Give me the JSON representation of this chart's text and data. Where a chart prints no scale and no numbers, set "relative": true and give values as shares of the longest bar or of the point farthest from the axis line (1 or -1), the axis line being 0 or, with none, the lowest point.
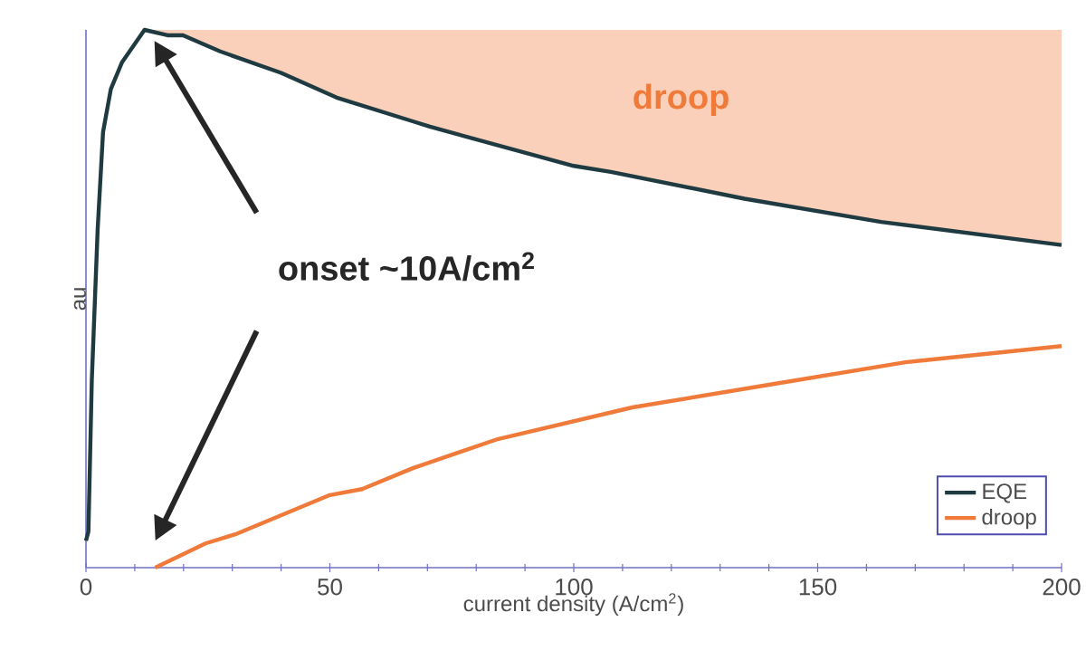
{
  "chart_data": {
    "type": "line",
    "relative": true,
    "xlabel": "current density (A/cm$^{2}$)",
    "ylabel": "au",
    "xlim": [
      0,
      200
    ],
    "xticks": [
      0,
      50,
      100,
      150,
      200
    ],
    "legend": "bottom right",
    "series": [
      {
        "name": "EQE",
        "color": "#1f3a40",
        "x": [
          0,
          0.5,
          1.2,
          2.4,
          3.5,
          5.1,
          7.4,
          12,
          16.7,
          19.9,
          27.5,
          40,
          51.4,
          67,
          70.5,
          100,
          107.6,
          135,
          163,
          200
        ],
        "values": [
          0.05,
          0.067,
          0.35,
          0.63,
          0.81,
          0.89,
          0.94,
          1.0,
          0.99,
          0.99,
          0.96,
          0.92,
          0.874,
          0.83,
          0.82,
          0.747,
          0.736,
          0.686,
          0.643,
          0.6
        ],
        "lower": [
          null,
          null,
          null,
          null,
          null,
          null,
          null,
          1.0,
          0.99,
          0.99,
          0.96,
          0.92,
          0.874,
          0.83,
          0.82,
          0.747,
          0.736,
          0.686,
          0.643,
          0.6
        ],
        "upper": [
          null,
          null,
          null,
          null,
          null,
          null,
          null,
          1.0,
          1.0,
          1.0,
          1.0,
          1.0,
          1.0,
          1.0,
          1.0,
          1.0,
          1.0,
          1.0,
          1.0,
          1.0
        ]
      },
      {
        "name": "droop",
        "color": "#f07a3a",
        "x": [
          14.2,
          24.5,
          30.6,
          50,
          56.6,
          67,
          84.4,
          112,
          140,
          168,
          200
        ],
        "values": [
          0,
          0.045,
          0.062,
          0.135,
          0.146,
          0.185,
          0.239,
          0.298,
          0.34,
          0.382,
          0.412
        ]
      }
    ],
    "annotations": [
      "droop",
      "onset ~10A/cm$^{2}$"
    ]
  }
}
